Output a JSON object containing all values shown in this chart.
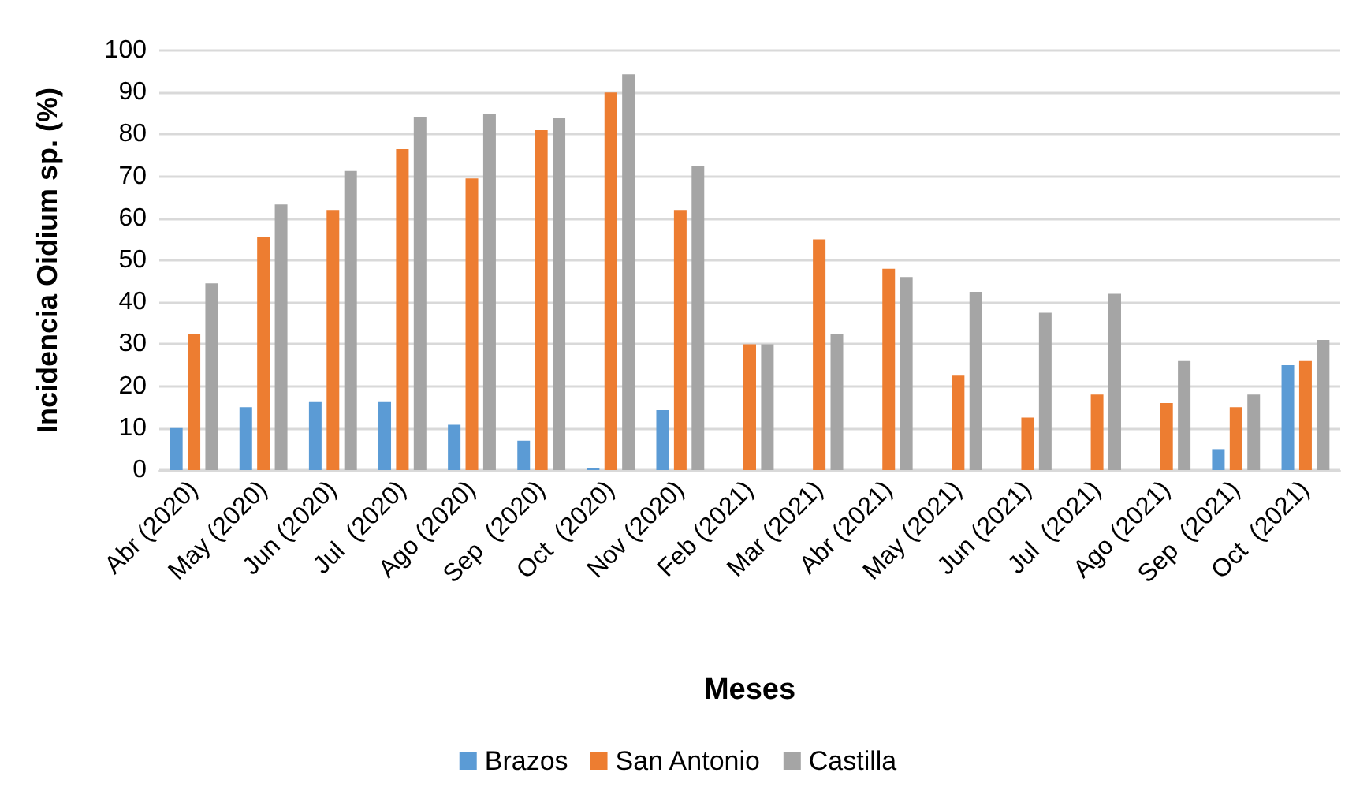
{
  "chart_data": {
    "type": "bar",
    "xlabel": "Meses",
    "ylabel": "Incidencia Oidium sp. (%)",
    "categories": [
      "Abr (2020)",
      "May (2020)",
      "Jun (2020)",
      "Jul  (2020)",
      "Ago (2020)",
      "Sep  (2020)",
      "Oct  (2020)",
      "Nov (2020)",
      "Feb (2021)",
      "Mar (2021)",
      "Abr (2021)",
      "May (2021)",
      "Jun (2021)",
      "Jul  (2021)",
      "Ago (2021)",
      "Sep  (2021)",
      "Oct  (2021)"
    ],
    "series": [
      {
        "name": "Brazos",
        "color": "#5b9bd5",
        "values": [
          10,
          15,
          16.2,
          16.2,
          10.8,
          7,
          0.5,
          14.3,
          0,
          0,
          0,
          0,
          0,
          0,
          0,
          5,
          25
        ]
      },
      {
        "name": "San Antonio",
        "color": "#ed7d31",
        "values": [
          32.5,
          55.5,
          62,
          76.5,
          69.5,
          81,
          90,
          62,
          30,
          55,
          48,
          22.5,
          12.5,
          18,
          16,
          15,
          26
        ]
      },
      {
        "name": "Castilla",
        "color": "#a5a5a5",
        "values": [
          44.5,
          63.3,
          71.3,
          84.2,
          84.8,
          84,
          94.3,
          72.5,
          30,
          32.5,
          46,
          42.5,
          37.5,
          42,
          26,
          18,
          31
        ]
      }
    ],
    "ylim": [
      0,
      100
    ],
    "yticks": [
      0,
      10,
      20,
      30,
      40,
      50,
      60,
      70,
      80,
      90,
      100
    ],
    "grid": true,
    "legend": "bottom"
  }
}
